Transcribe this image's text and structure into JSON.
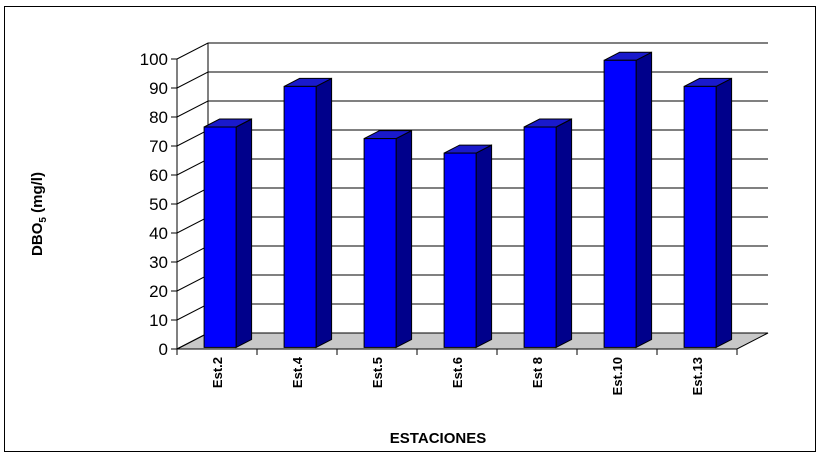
{
  "chart_data": {
    "type": "bar",
    "categories": [
      "Est.2",
      "Est.4",
      "Est.5",
      "Est.6",
      "Est 8",
      "Est.10",
      "Est.13"
    ],
    "values": [
      76,
      90,
      72,
      67,
      76,
      99,
      90
    ],
    "title": "",
    "xlabel": "ESTACIONES",
    "ylabel": {
      "base": "DBO",
      "sub": "5",
      "rest": " (mg/l)"
    },
    "ylim": [
      0,
      100
    ],
    "yticks": [
      0,
      10,
      20,
      30,
      40,
      50,
      60,
      70,
      80,
      90,
      100
    ],
    "grid": true,
    "three_d": true,
    "colors": {
      "bar_front": "#0000ff",
      "bar_side": "#00008b",
      "bar_top": "#1a1acc",
      "floor": "#c8c8c8"
    }
  }
}
